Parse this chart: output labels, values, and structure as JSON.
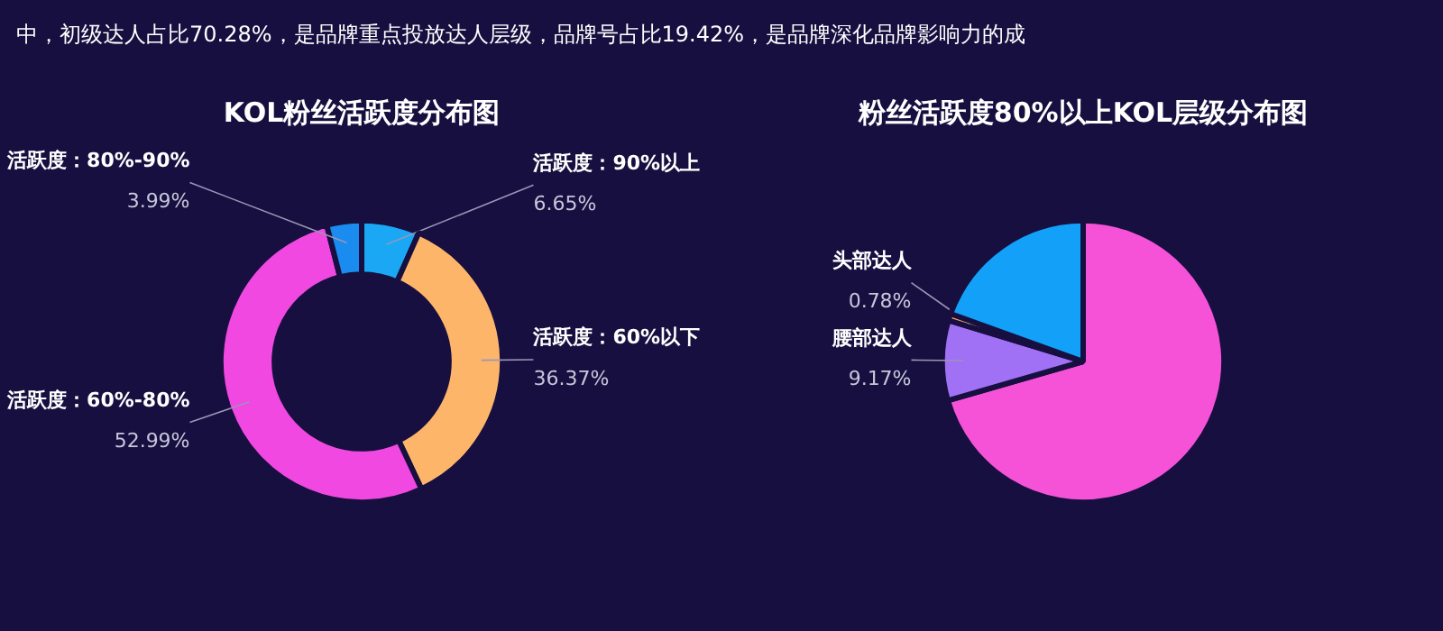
{
  "chart_data": [
    {
      "type": "donut",
      "title": "KOL粉丝活跃度分布图",
      "annotations": [
        "中，初级达人占比70.28%，是品牌重点投放达人层级，品牌号占比19.42%，是品牌深化品牌影响力的成"
      ],
      "categories": [
        "活跃度：90%以上",
        "活跃度：60%以下",
        "活跃度：60%-80%",
        "活跃度：80%-90%"
      ],
      "values": [
        6.65,
        36.37,
        52.99,
        3.99
      ],
      "value_labels": [
        "6.65%",
        "36.37%",
        "52.99%",
        "3.99%"
      ],
      "colors": [
        "#1aa8f5",
        "#fdb56a",
        "#f048e0",
        "#1a8cf0"
      ]
    },
    {
      "type": "pie",
      "title": "粉丝活跃度80%以上KOL层级分布图",
      "categories": [
        null,
        "腰部达人",
        "头部达人",
        null
      ],
      "values": [
        70.28,
        9.17,
        0.78,
        19.42
      ],
      "value_labels": [
        null,
        "9.17%",
        "0.78%",
        null
      ],
      "colors": [
        "#f552d8",
        "#a070f5",
        "#f59a6a",
        "#12a0f8"
      ]
    }
  ]
}
